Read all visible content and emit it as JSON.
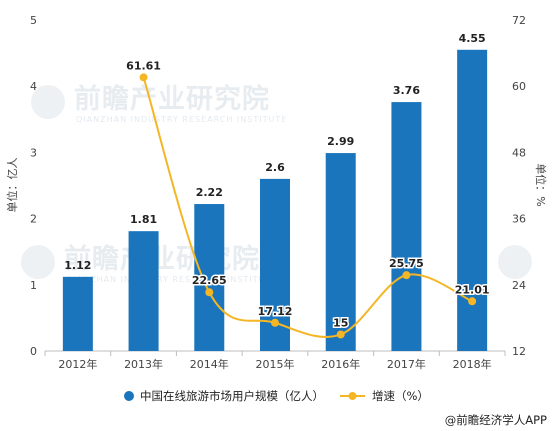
{
  "chart_data": {
    "type": "bar",
    "categories": [
      "2012年",
      "2013年",
      "2014年",
      "2015年",
      "2016年",
      "2017年",
      "2018年"
    ],
    "series": [
      {
        "name": "中国在线旅游市场用户规模（亿人）",
        "type": "bar",
        "axis": "left",
        "values": [
          1.12,
          1.81,
          2.22,
          2.6,
          2.99,
          3.76,
          4.55
        ],
        "labels": [
          "1.12",
          "1.81",
          "2.22",
          "2.6",
          "2.99",
          "3.76",
          "4.55"
        ],
        "color": "#1a75bc"
      },
      {
        "name": "增速（%）",
        "type": "line",
        "axis": "right",
        "values": [
          null,
          61.61,
          22.65,
          17.12,
          15,
          25.75,
          21.01
        ],
        "labels": [
          "",
          "61.61",
          "22.65",
          "17.12",
          "15",
          "25.75",
          "21.01"
        ],
        "color": "#f5b625"
      }
    ],
    "y_left": {
      "label": "单位：亿人",
      "ylim": [
        0,
        5
      ],
      "ticks": [
        0,
        1,
        2,
        3,
        4,
        5
      ],
      "tick_labels": [
        "0",
        "1",
        "2",
        "3",
        "4",
        "5"
      ]
    },
    "y_right": {
      "label": "单位：%",
      "ylim": [
        12,
        72
      ],
      "ticks": [
        12,
        24,
        36,
        48,
        60,
        72
      ],
      "tick_labels": [
        "12",
        "24",
        "36",
        "48",
        "60",
        "72"
      ]
    },
    "grid": false,
    "legend_position": "bottom"
  },
  "source": "@前瞻经济学人APP",
  "watermark": {
    "text": "前瞻产业研究院",
    "subtext": "QIANZHAN INDUSTRY RESEARCH INSTITUTE"
  }
}
